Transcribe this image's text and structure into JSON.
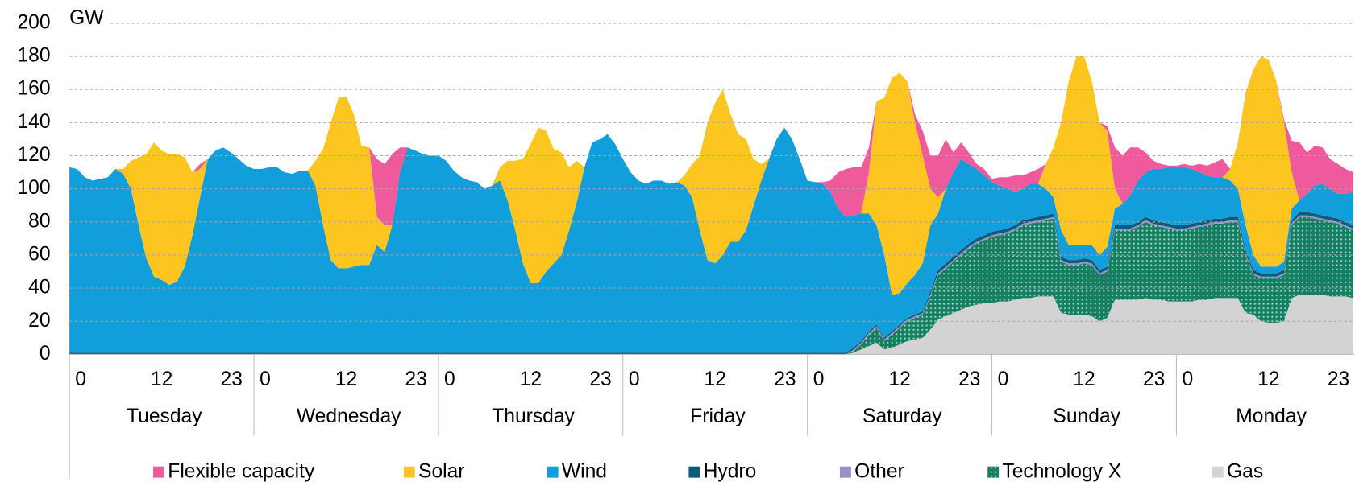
{
  "chart_data": {
    "type": "stacked_area",
    "ylabel": "GW",
    "ylim": [
      0,
      200
    ],
    "yticks": [
      0,
      20,
      40,
      60,
      80,
      100,
      120,
      140,
      160,
      180,
      200
    ],
    "grid": true,
    "categories": [
      "0",
      null,
      null,
      null,
      null,
      null,
      null,
      null,
      null,
      null,
      null,
      null,
      "12",
      null,
      null,
      null,
      null,
      null,
      null,
      null,
      null,
      null,
      null,
      "23",
      "0",
      null,
      null,
      null,
      null,
      null,
      null,
      null,
      null,
      null,
      null,
      null,
      "12",
      null,
      null,
      null,
      null,
      null,
      null,
      null,
      null,
      null,
      null,
      "23",
      "0",
      null,
      null,
      null,
      null,
      null,
      null,
      null,
      null,
      null,
      null,
      null,
      "12",
      null,
      null,
      null,
      null,
      null,
      null,
      null,
      null,
      null,
      null,
      "23",
      "0",
      null,
      null,
      null,
      null,
      null,
      null,
      null,
      null,
      null,
      null,
      null,
      "12",
      null,
      null,
      null,
      null,
      null,
      null,
      null,
      null,
      null,
      null,
      "23",
      "0",
      null,
      null,
      null,
      null,
      null,
      null,
      null,
      null,
      null,
      null,
      null,
      "12",
      null,
      null,
      null,
      null,
      null,
      null,
      null,
      null,
      null,
      null,
      "23",
      "0",
      null,
      null,
      null,
      null,
      null,
      null,
      null,
      null,
      null,
      null,
      null,
      "12",
      null,
      null,
      null,
      null,
      null,
      null,
      null,
      null,
      null,
      null,
      "23",
      "0",
      null,
      null,
      null,
      null,
      null,
      null,
      null,
      null,
      null,
      null,
      null,
      "12",
      null,
      null,
      null,
      null,
      null,
      null,
      null,
      null,
      null,
      null,
      "23"
    ],
    "groups": [
      "Tuesday",
      "Wednesday",
      "Thursday",
      "Friday",
      "Saturday",
      "Sunday",
      "Monday"
    ],
    "series": [
      {
        "name": "Flexible capacity",
        "color": "#ee5a9c",
        "values": [
          0,
          0,
          0,
          0,
          0,
          0,
          0,
          0,
          0,
          0,
          0,
          0,
          0,
          0,
          0,
          0,
          0,
          3,
          0,
          0,
          0,
          0,
          0,
          0,
          0,
          0,
          0,
          0,
          0,
          0,
          0,
          0,
          0,
          0,
          0,
          0,
          0,
          0,
          0,
          0,
          35,
          37,
          43,
          15,
          0,
          0,
          0,
          0,
          0,
          0,
          0,
          0,
          0,
          0,
          0,
          0,
          0,
          0,
          0,
          0,
          0,
          0,
          0,
          0,
          0,
          0,
          0,
          0,
          0,
          0,
          0,
          0,
          0,
          0,
          0,
          0,
          0,
          0,
          0,
          0,
          0,
          0,
          0,
          0,
          0,
          0,
          0,
          0,
          0,
          0,
          0,
          0,
          0,
          0,
          0,
          0,
          0,
          0,
          1,
          7,
          22,
          29,
          29,
          28,
          15,
          0,
          0,
          0,
          0,
          0,
          5,
          15,
          20,
          25,
          30,
          12,
          10,
          7,
          3,
          4,
          2,
          5,
          7,
          10,
          8,
          7,
          9,
          0,
          0,
          0,
          0,
          0,
          0,
          0,
          0,
          3,
          25,
          29,
          29,
          20,
          12,
          5,
          3,
          1,
          1,
          2,
          2,
          5,
          6,
          9,
          11,
          0,
          0,
          0,
          0,
          0,
          0,
          0,
          2,
          19,
          35,
          25,
          24,
          22,
          18,
          18,
          15,
          12
        ]
      },
      {
        "name": "Solar",
        "color": "#fdc520",
        "values": [
          0,
          0,
          0,
          0,
          0,
          0,
          0,
          3,
          17,
          41,
          63,
          81,
          78,
          79,
          77,
          66,
          38,
          17,
          0,
          0,
          0,
          0,
          0,
          0,
          0,
          0,
          0,
          0,
          0,
          0,
          0,
          0,
          15,
          46,
          83,
          103,
          104,
          92,
          72,
          71,
          17,
          16,
          0,
          0,
          0,
          0,
          0,
          0,
          0,
          0,
          0,
          0,
          0,
          0,
          0,
          0,
          8,
          24,
          42,
          63,
          84,
          94,
          85,
          69,
          62,
          38,
          25,
          0,
          0,
          0,
          0,
          0,
          0,
          0,
          0,
          0,
          0,
          0,
          0,
          0,
          6,
          20,
          45,
          83,
          97,
          100,
          77,
          65,
          55,
          28,
          10,
          0,
          0,
          0,
          0,
          0,
          0,
          0,
          0,
          0,
          0,
          0,
          0,
          0,
          25,
          75,
          95,
          131,
          133,
          122,
          92,
          65,
          22,
          10,
          0,
          0,
          0,
          0,
          0,
          0,
          0,
          0,
          0,
          0,
          0,
          0,
          0,
          15,
          30,
          65,
          99,
          114,
          114,
          99,
          80,
          70,
          12,
          0,
          0,
          0,
          0,
          0,
          0,
          0,
          0,
          0,
          0,
          0,
          0,
          0,
          0,
          7,
          28,
          80,
          112,
          127,
          125,
          112,
          84,
          22,
          0,
          0,
          0,
          0,
          0,
          0,
          0,
          0
        ]
      },
      {
        "name": "Wind",
        "color": "#129ddb",
        "values": [
          112,
          111,
          106,
          104,
          105,
          106,
          111,
          108,
          99,
          77,
          57,
          46,
          44,
          41,
          43,
          52,
          71,
          94,
          117,
          122,
          124,
          121,
          117,
          113,
          111,
          111,
          112,
          112,
          109,
          108,
          110,
          110,
          101,
          77,
          56,
          51,
          51,
          52,
          53,
          53,
          65,
          61,
          77,
          109,
          124,
          122,
          120,
          119,
          119,
          116,
          110,
          106,
          104,
          103,
          99,
          101,
          104,
          92,
          74,
          54,
          42,
          42,
          49,
          54,
          59,
          74,
          91,
          112,
          127,
          129,
          132,
          126,
          117,
          109,
          104,
          102,
          104,
          104,
          102,
          103,
          101,
          94,
          74,
          56,
          54,
          59,
          67,
          67,
          74,
          89,
          104,
          117,
          129,
          136,
          129,
          117,
          104,
          103,
          102,
          97,
          87,
          82,
          80,
          77,
          71,
          60,
          50,
          22,
          19,
          21,
          24,
          29,
          40,
          34,
          45,
          51,
          55,
          48,
          42,
          36,
          30,
          27,
          24,
          20,
          19,
          21,
          20,
          16,
          10,
          16,
          9,
          9,
          8,
          9,
          9,
          12,
          10,
          13,
          18,
          25,
          27,
          31,
          32,
          34,
          35,
          35,
          33,
          30,
          27,
          25,
          25,
          22,
          17,
          15,
          9,
          4,
          4,
          4,
          5,
          7,
          7,
          11,
          17,
          19,
          17,
          15,
          17,
          20
        ]
      },
      {
        "name": "Hydro",
        "color": "#0e5a7a",
        "values": [
          1,
          1,
          1,
          1,
          1,
          1,
          1,
          1,
          1,
          1,
          1,
          1,
          1,
          1,
          1,
          1,
          1,
          1,
          1,
          1,
          1,
          1,
          1,
          1,
          1,
          1,
          1,
          1,
          1,
          1,
          1,
          1,
          1,
          1,
          1,
          1,
          1,
          1,
          1,
          1,
          1,
          1,
          1,
          1,
          1,
          1,
          1,
          1,
          1,
          1,
          1,
          1,
          1,
          1,
          1,
          1,
          1,
          1,
          1,
          1,
          1,
          1,
          1,
          1,
          1,
          1,
          1,
          1,
          1,
          1,
          1,
          1,
          1,
          1,
          1,
          1,
          1,
          1,
          1,
          1,
          1,
          1,
          1,
          1,
          1,
          1,
          1,
          1,
          1,
          1,
          1,
          1,
          1,
          1,
          1,
          1,
          1,
          1,
          1,
          1,
          1,
          1,
          1,
          1,
          1,
          1,
          1,
          1,
          1,
          1,
          1,
          1,
          2,
          2,
          2,
          2,
          2,
          2,
          2,
          2,
          2,
          2,
          2,
          2,
          2,
          2,
          2,
          2,
          2,
          2,
          2,
          2,
          2,
          2,
          2,
          2,
          2,
          2,
          2,
          2,
          2,
          2,
          2,
          2,
          2,
          2,
          2,
          2,
          2,
          2,
          2,
          2,
          2,
          2,
          2,
          2,
          2,
          2,
          2,
          2,
          2,
          2,
          2,
          2,
          2,
          2,
          2,
          2
        ]
      },
      {
        "name": "Other",
        "color": "#9e8ec8",
        "values": [
          0,
          0,
          0,
          0,
          0,
          0,
          0,
          0,
          0,
          0,
          0,
          0,
          0,
          0,
          0,
          0,
          0,
          0,
          0,
          0,
          0,
          0,
          0,
          0,
          0,
          0,
          0,
          0,
          0,
          0,
          0,
          0,
          0,
          0,
          0,
          0,
          0,
          0,
          0,
          0,
          0,
          0,
          0,
          0,
          0,
          0,
          0,
          0,
          0,
          0,
          0,
          0,
          0,
          0,
          0,
          0,
          0,
          0,
          0,
          0,
          0,
          0,
          0,
          0,
          0,
          0,
          0,
          0,
          0,
          0,
          0,
          0,
          0,
          0,
          0,
          0,
          0,
          0,
          0,
          0,
          0,
          0,
          0,
          0,
          0,
          0,
          0,
          0,
          0,
          0,
          0,
          0,
          0,
          0,
          0,
          0,
          0,
          0,
          0,
          0,
          0,
          0,
          1,
          1,
          1,
          1,
          1,
          1,
          1,
          1,
          1,
          1,
          1,
          1,
          1,
          1,
          1,
          1,
          1,
          1,
          1,
          1,
          1,
          1,
          1,
          1,
          1,
          1,
          1,
          1,
          1,
          1,
          1,
          1,
          1,
          1,
          1,
          1,
          1,
          1,
          1,
          1,
          1,
          1,
          1,
          1,
          1,
          1,
          1,
          1,
          1,
          1,
          1,
          1,
          1,
          1,
          1,
          1,
          1,
          1,
          1,
          1,
          1,
          1,
          1,
          1,
          1,
          1
        ]
      },
      {
        "name": "Technology X",
        "color": "#167f63",
        "values": [
          0,
          0,
          0,
          0,
          0,
          0,
          0,
          0,
          0,
          0,
          0,
          0,
          0,
          0,
          0,
          0,
          0,
          0,
          0,
          0,
          0,
          0,
          0,
          0,
          0,
          0,
          0,
          0,
          0,
          0,
          0,
          0,
          0,
          0,
          0,
          0,
          0,
          0,
          0,
          0,
          0,
          0,
          0,
          0,
          0,
          0,
          0,
          0,
          0,
          0,
          0,
          0,
          0,
          0,
          0,
          0,
          0,
          0,
          0,
          0,
          0,
          0,
          0,
          0,
          0,
          0,
          0,
          0,
          0,
          0,
          0,
          0,
          0,
          0,
          0,
          0,
          0,
          0,
          0,
          0,
          0,
          0,
          0,
          0,
          0,
          0,
          0,
          0,
          0,
          0,
          0,
          0,
          0,
          0,
          0,
          0,
          0,
          0,
          0,
          0,
          0,
          0,
          1,
          3,
          7,
          9,
          5,
          8,
          10,
          12,
          13,
          14,
          20,
          27,
          29,
          31,
          33,
          35,
          37,
          38,
          40,
          40,
          41,
          42,
          44,
          45,
          45,
          46,
          47,
          31,
          30,
          30,
          31,
          31,
          28,
          28,
          42,
          42,
          42,
          44,
          46,
          45,
          44,
          44,
          43,
          43,
          44,
          44,
          45,
          45,
          45,
          46,
          46,
          35,
          24,
          26,
          27,
          27,
          28,
          44,
          47,
          47,
          46,
          45,
          45,
          44,
          42,
          41
        ]
      },
      {
        "name": "Gas",
        "color": "#d3d3d3",
        "values": [
          0,
          0,
          0,
          0,
          0,
          0,
          0,
          0,
          0,
          0,
          0,
          0,
          0,
          0,
          0,
          0,
          0,
          0,
          0,
          0,
          0,
          0,
          0,
          0,
          0,
          0,
          0,
          0,
          0,
          0,
          0,
          0,
          0,
          0,
          0,
          0,
          0,
          0,
          0,
          0,
          0,
          0,
          0,
          0,
          0,
          0,
          0,
          0,
          0,
          0,
          0,
          0,
          0,
          0,
          0,
          0,
          0,
          0,
          0,
          0,
          0,
          0,
          0,
          0,
          0,
          0,
          0,
          0,
          0,
          0,
          0,
          0,
          0,
          0,
          0,
          0,
          0,
          0,
          0,
          0,
          0,
          0,
          0,
          0,
          0,
          0,
          0,
          0,
          0,
          0,
          0,
          0,
          0,
          0,
          0,
          0,
          0,
          0,
          0,
          0,
          0,
          0,
          1,
          3,
          5,
          7,
          3,
          4,
          6,
          8,
          9,
          10,
          15,
          21,
          23,
          25,
          27,
          29,
          30,
          31,
          31,
          32,
          32,
          33,
          34,
          34,
          35,
          35,
          35,
          25,
          24,
          24,
          24,
          23,
          20,
          22,
          33,
          33,
          33,
          33,
          34,
          33,
          33,
          32,
          32,
          32,
          32,
          33,
          33,
          34,
          34,
          34,
          34,
          25,
          24,
          20,
          19,
          19,
          20,
          34,
          36,
          36,
          36,
          36,
          35,
          35,
          35,
          34
        ]
      }
    ]
  }
}
